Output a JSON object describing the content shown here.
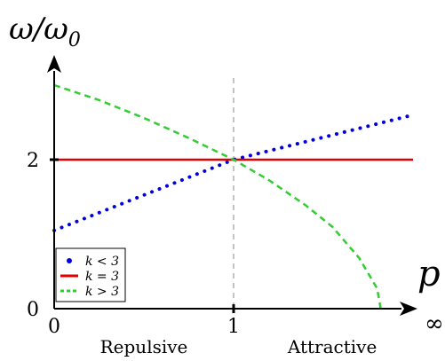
{
  "chart_data": {
    "type": "line",
    "title": "",
    "xlabel": "p",
    "ylabel": "ω/ω₀",
    "ylabel_main": "ω/ω",
    "ylabel_sub": "0",
    "xlim": [
      0,
      2
    ],
    "ylim": [
      0,
      3
    ],
    "x_ticks": [
      {
        "value": 0,
        "label": "0"
      },
      {
        "value": 1,
        "label": "1"
      }
    ],
    "x_axis_end_label": "∞",
    "y_ticks": [
      {
        "value": 0,
        "label": "0"
      },
      {
        "value": 2,
        "label": "2"
      }
    ],
    "reference_line": {
      "x": 1,
      "style": "dashed",
      "color": "#b0b0b0"
    },
    "region_labels": [
      {
        "text": "Repulsive",
        "x": 0.5
      },
      {
        "text": "Attractive",
        "x": 1.55
      }
    ],
    "series": [
      {
        "name": "k < 3",
        "style": "dotted",
        "color": "#0000dd",
        "points": [
          [
            0,
            1.05
          ],
          [
            1,
            2.0
          ],
          [
            2,
            2.6
          ]
        ]
      },
      {
        "name": "k = 3",
        "style": "solid",
        "color": "#e00000",
        "points": [
          [
            0,
            2.0
          ],
          [
            2,
            2.0
          ]
        ]
      },
      {
        "name": "k > 3",
        "style": "dashed",
        "color": "#33cc33",
        "points": [
          [
            0,
            3.0
          ],
          [
            0.25,
            2.8
          ],
          [
            0.5,
            2.56
          ],
          [
            0.75,
            2.29
          ],
          [
            1.0,
            2.0
          ],
          [
            1.2,
            1.72
          ],
          [
            1.4,
            1.39
          ],
          [
            1.55,
            1.1
          ],
          [
            1.7,
            0.68
          ],
          [
            1.8,
            0.27
          ],
          [
            1.82,
            0.0
          ]
        ]
      }
    ],
    "legend": {
      "placement": "bottom-left",
      "entries": [
        {
          "label": "k < 3",
          "style": "dotted",
          "color": "#0000dd"
        },
        {
          "label": "k = 3",
          "style": "solid",
          "color": "#e00000"
        },
        {
          "label": "k > 3",
          "style": "dashed",
          "color": "#33cc33"
        }
      ]
    }
  }
}
